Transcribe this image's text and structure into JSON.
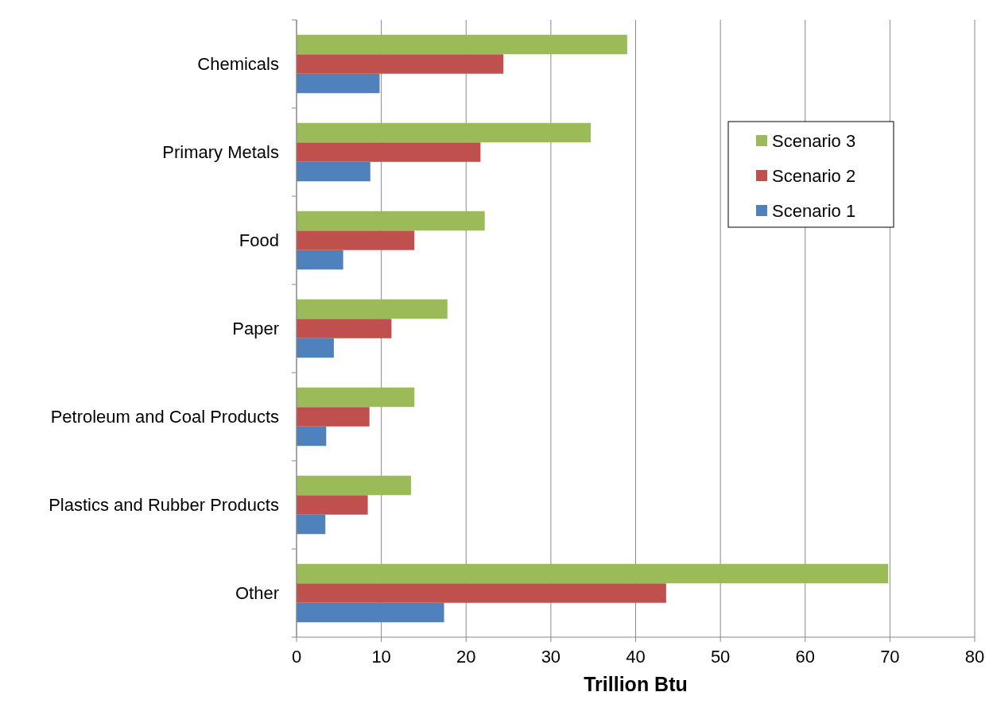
{
  "chart_data": {
    "type": "bar",
    "orientation": "horizontal",
    "xlabel": "Trillion Btu",
    "categories": [
      "Chemicals",
      "Primary Metals",
      "Food",
      "Paper",
      "Petroleum and Coal Products",
      "Plastics and Rubber Products",
      "Other"
    ],
    "series": [
      {
        "name": "Scenario 1",
        "color": "#4f81bd",
        "values": [
          9.8,
          8.7,
          5.5,
          4.4,
          3.5,
          3.4,
          17.4
        ]
      },
      {
        "name": "Scenario 2",
        "color": "#c0504d",
        "values": [
          24.4,
          21.7,
          13.9,
          11.2,
          8.6,
          8.4,
          43.6
        ]
      },
      {
        "name": "Scenario 3",
        "color": "#9bbb59",
        "values": [
          39.0,
          34.7,
          22.2,
          17.8,
          13.9,
          13.5,
          69.8
        ]
      }
    ],
    "xlim": [
      0,
      80
    ],
    "xticks": [
      0,
      10,
      20,
      30,
      40,
      50,
      60,
      70,
      80
    ],
    "grid": "x",
    "legend": "top right"
  }
}
